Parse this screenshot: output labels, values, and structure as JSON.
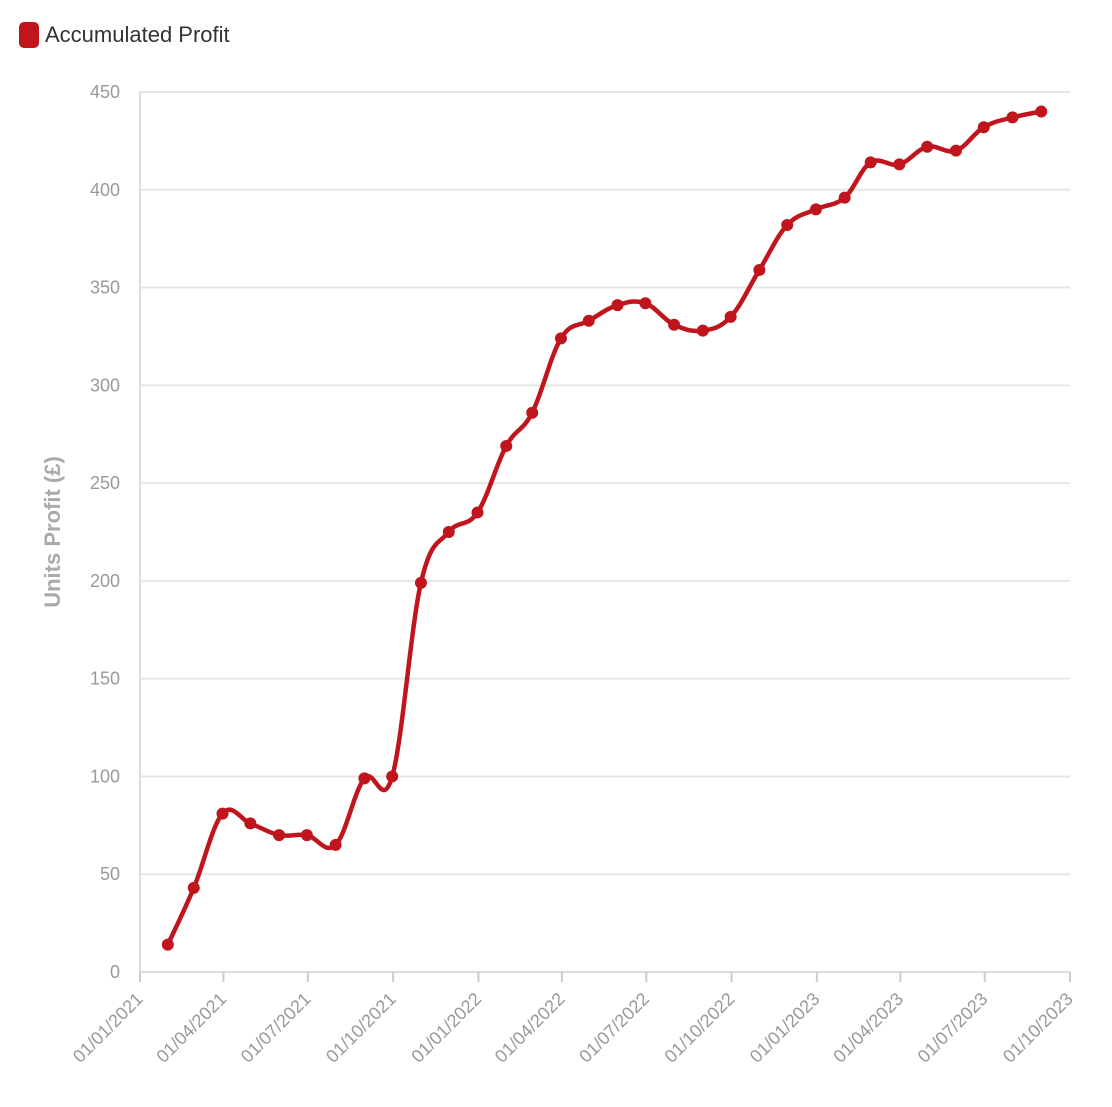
{
  "legend": {
    "label": "Accumulated Profit"
  },
  "colors": {
    "series": "#c0151c"
  },
  "chart_data": {
    "type": "line",
    "title": "",
    "xlabel": "",
    "ylabel": "Units Profit (£)",
    "ylim": [
      0,
      450
    ],
    "yticks": [
      0,
      50,
      100,
      150,
      200,
      250,
      300,
      350,
      400,
      450
    ],
    "xlim": [
      "2021-01-01",
      "2023-10-01"
    ],
    "xticks": [
      {
        "date": "2021-01-01",
        "label": "01/01/2021"
      },
      {
        "date": "2021-04-01",
        "label": "01/04/2021"
      },
      {
        "date": "2021-07-01",
        "label": "01/07/2021"
      },
      {
        "date": "2021-10-01",
        "label": "01/10/2021"
      },
      {
        "date": "2022-01-01",
        "label": "01/01/2022"
      },
      {
        "date": "2022-04-01",
        "label": "01/04/2022"
      },
      {
        "date": "2022-07-01",
        "label": "01/07/2022"
      },
      {
        "date": "2022-10-01",
        "label": "01/10/2022"
      },
      {
        "date": "2023-01-01",
        "label": "01/01/2023"
      },
      {
        "date": "2023-04-01",
        "label": "01/04/2023"
      },
      {
        "date": "2023-07-01",
        "label": "01/07/2023"
      },
      {
        "date": "2023-10-01",
        "label": "01/10/2023"
      }
    ],
    "grid": true,
    "legend_position": "top-left",
    "series": [
      {
        "name": "Accumulated Profit",
        "points": [
          {
            "x": "2021-01-31",
            "y": 14
          },
          {
            "x": "2021-02-28",
            "y": 43
          },
          {
            "x": "2021-03-31",
            "y": 81
          },
          {
            "x": "2021-04-30",
            "y": 76
          },
          {
            "x": "2021-05-31",
            "y": 70
          },
          {
            "x": "2021-06-30",
            "y": 70
          },
          {
            "x": "2021-07-31",
            "y": 65
          },
          {
            "x": "2021-08-31",
            "y": 99
          },
          {
            "x": "2021-09-30",
            "y": 100
          },
          {
            "x": "2021-10-31",
            "y": 199
          },
          {
            "x": "2021-11-30",
            "y": 225
          },
          {
            "x": "2021-12-31",
            "y": 235
          },
          {
            "x": "2022-01-31",
            "y": 269
          },
          {
            "x": "2022-02-28",
            "y": 286
          },
          {
            "x": "2022-03-31",
            "y": 324
          },
          {
            "x": "2022-04-30",
            "y": 333
          },
          {
            "x": "2022-05-31",
            "y": 341
          },
          {
            "x": "2022-06-30",
            "y": 342
          },
          {
            "x": "2022-07-31",
            "y": 331
          },
          {
            "x": "2022-08-31",
            "y": 328
          },
          {
            "x": "2022-09-30",
            "y": 335
          },
          {
            "x": "2022-10-31",
            "y": 359
          },
          {
            "x": "2022-11-30",
            "y": 382
          },
          {
            "x": "2022-12-31",
            "y": 390
          },
          {
            "x": "2023-01-31",
            "y": 396
          },
          {
            "x": "2023-02-28",
            "y": 414
          },
          {
            "x": "2023-03-31",
            "y": 413
          },
          {
            "x": "2023-04-30",
            "y": 422
          },
          {
            "x": "2023-05-31",
            "y": 420
          },
          {
            "x": "2023-06-30",
            "y": 432
          },
          {
            "x": "2023-07-31",
            "y": 437
          },
          {
            "x": "2023-08-31",
            "y": 440
          }
        ]
      }
    ]
  }
}
